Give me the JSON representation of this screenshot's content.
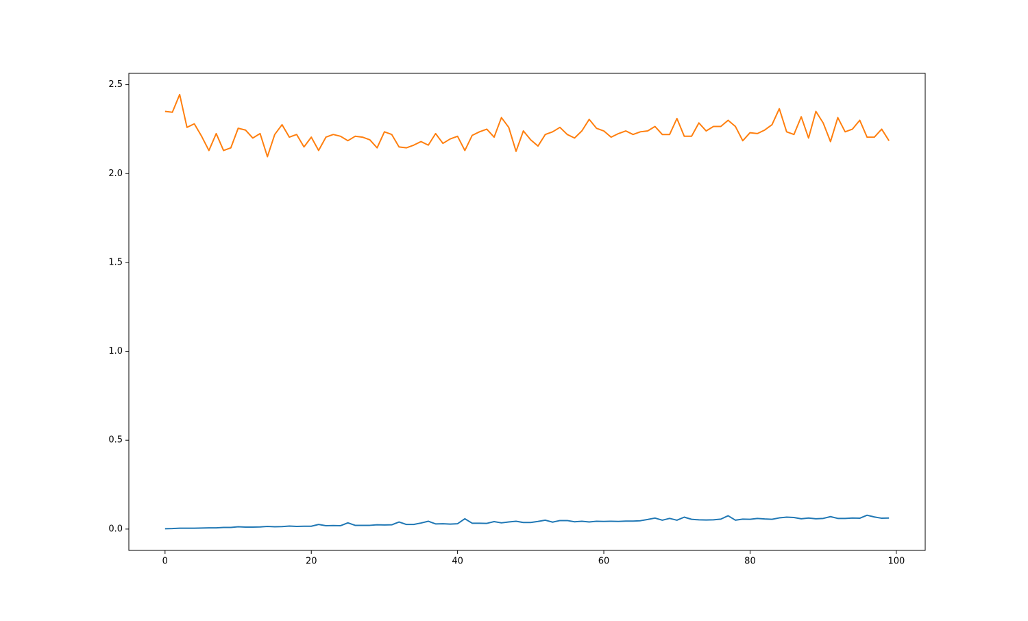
{
  "chart_data": {
    "type": "line",
    "x": [
      0,
      1,
      2,
      3,
      4,
      5,
      6,
      7,
      8,
      9,
      10,
      11,
      12,
      13,
      14,
      15,
      16,
      17,
      18,
      19,
      20,
      21,
      22,
      23,
      24,
      25,
      26,
      27,
      28,
      29,
      30,
      31,
      32,
      33,
      34,
      35,
      36,
      37,
      38,
      39,
      40,
      41,
      42,
      43,
      44,
      45,
      46,
      47,
      48,
      49,
      50,
      51,
      52,
      53,
      54,
      55,
      56,
      57,
      58,
      59,
      60,
      61,
      62,
      63,
      64,
      65,
      66,
      67,
      68,
      69,
      70,
      71,
      72,
      73,
      74,
      75,
      76,
      77,
      78,
      79,
      80,
      81,
      82,
      83,
      84,
      85,
      86,
      87,
      88,
      89,
      90,
      91,
      92,
      93,
      94,
      95,
      96,
      97,
      98,
      99
    ],
    "series": [
      {
        "color": "#1f77b4",
        "values": [
          0.002,
          0.003,
          0.005,
          0.005,
          0.005,
          0.006,
          0.007,
          0.007,
          0.009,
          0.009,
          0.013,
          0.011,
          0.011,
          0.012,
          0.015,
          0.013,
          0.014,
          0.017,
          0.015,
          0.016,
          0.016,
          0.026,
          0.019,
          0.02,
          0.019,
          0.035,
          0.021,
          0.021,
          0.021,
          0.024,
          0.023,
          0.024,
          0.04,
          0.026,
          0.026,
          0.034,
          0.044,
          0.029,
          0.03,
          0.028,
          0.03,
          0.058,
          0.033,
          0.033,
          0.032,
          0.042,
          0.035,
          0.04,
          0.044,
          0.037,
          0.037,
          0.043,
          0.05,
          0.039,
          0.048,
          0.048,
          0.041,
          0.044,
          0.04,
          0.044,
          0.043,
          0.044,
          0.043,
          0.045,
          0.045,
          0.047,
          0.054,
          0.062,
          0.05,
          0.06,
          0.05,
          0.067,
          0.055,
          0.052,
          0.051,
          0.052,
          0.056,
          0.075,
          0.05,
          0.056,
          0.055,
          0.06,
          0.057,
          0.055,
          0.063,
          0.067,
          0.065,
          0.058,
          0.062,
          0.058,
          0.06,
          0.07,
          0.06,
          0.06,
          0.062,
          0.061,
          0.078,
          0.068,
          0.061,
          0.062
        ]
      },
      {
        "color": "#ff7f0e",
        "values": [
          2.35,
          2.345,
          2.445,
          2.26,
          2.28,
          2.21,
          2.13,
          2.225,
          2.13,
          2.145,
          2.255,
          2.245,
          2.2,
          2.225,
          2.095,
          2.22,
          2.275,
          2.205,
          2.22,
          2.15,
          2.205,
          2.13,
          2.205,
          2.22,
          2.21,
          2.185,
          2.21,
          2.205,
          2.19,
          2.145,
          2.235,
          2.22,
          2.15,
          2.145,
          2.16,
          2.18,
          2.16,
          2.225,
          2.17,
          2.195,
          2.21,
          2.13,
          2.215,
          2.235,
          2.25,
          2.205,
          2.315,
          2.26,
          2.125,
          2.24,
          2.19,
          2.155,
          2.22,
          2.235,
          2.26,
          2.22,
          2.2,
          2.24,
          2.305,
          2.255,
          2.24,
          2.205,
          2.225,
          2.24,
          2.22,
          2.235,
          2.24,
          2.265,
          2.22,
          2.22,
          2.31,
          2.21,
          2.21,
          2.285,
          2.24,
          2.265,
          2.265,
          2.3,
          2.265,
          2.185,
          2.23,
          2.225,
          2.245,
          2.275,
          2.365,
          2.235,
          2.22,
          2.32,
          2.2,
          2.35,
          2.285,
          2.18,
          2.315,
          2.235,
          2.25,
          2.3,
          2.205,
          2.205,
          2.25,
          2.185
        ]
      }
    ],
    "xlim": [
      -4.95,
      103.95
    ],
    "ylim": [
      -0.12,
      2.564
    ],
    "xticks": [
      0,
      20,
      40,
      60,
      80,
      100
    ],
    "yticks": [
      {
        "value": 0,
        "label": "0.0"
      },
      0.5,
      {
        "value": 1,
        "label": "1.0"
      },
      1.5,
      {
        "value": 2,
        "label": "2.0"
      },
      2.5
    ]
  }
}
